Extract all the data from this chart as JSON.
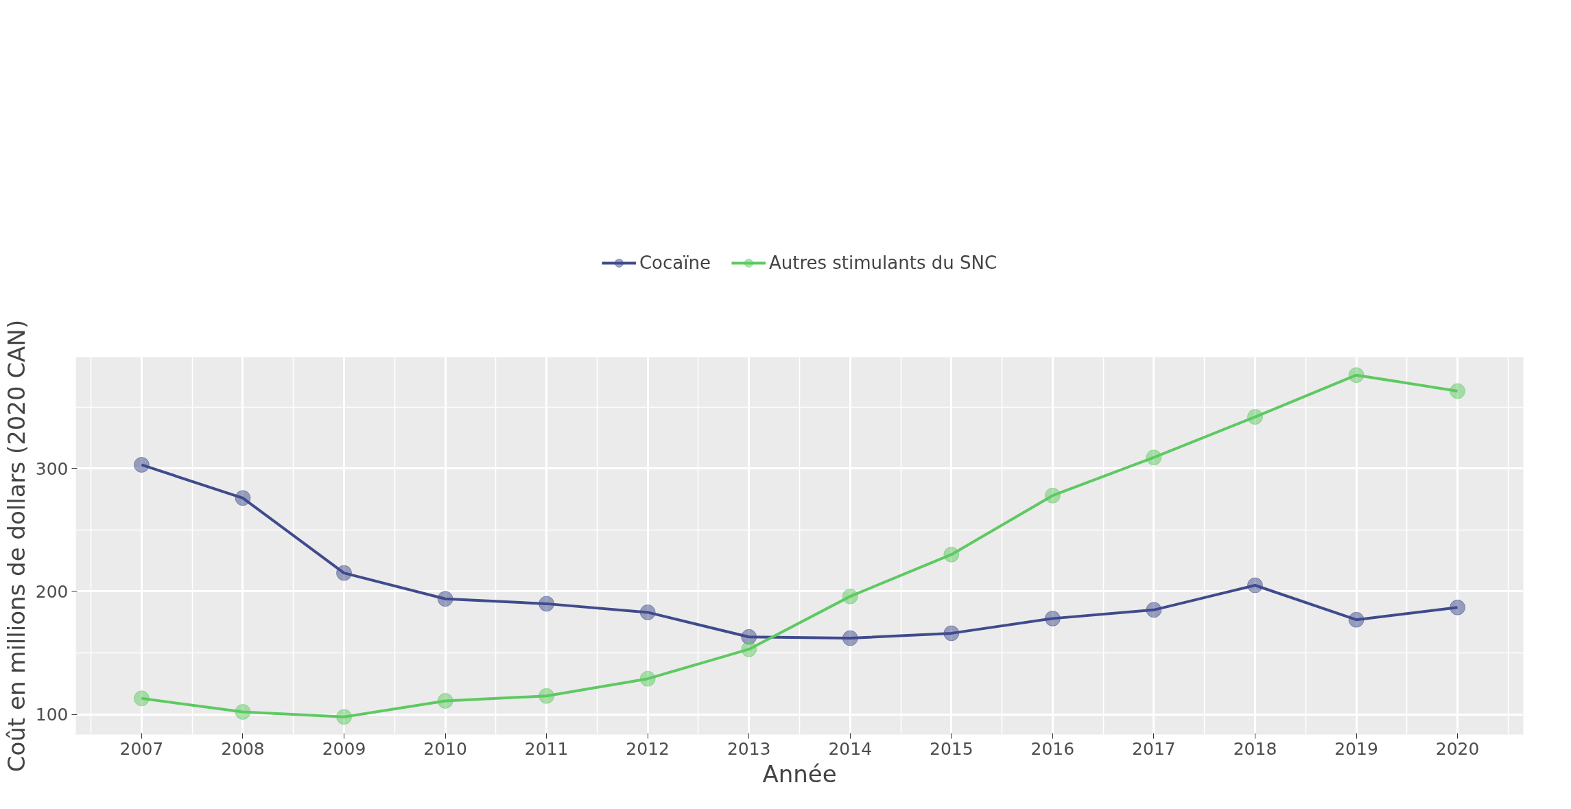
{
  "chart_data": {
    "type": "line",
    "xlabel": "Année",
    "ylabel": "Coût en millions de dollars (2020 CAN)",
    "x": [
      2007,
      2008,
      2009,
      2010,
      2011,
      2012,
      2013,
      2014,
      2015,
      2016,
      2017,
      2018,
      2019,
      2020
    ],
    "series": [
      {
        "name": "Cocaïne",
        "color": "#3f4b8c",
        "values": [
          303,
          276,
          215,
          194,
          190,
          183,
          163,
          162,
          166,
          178,
          185,
          205,
          177,
          187
        ]
      },
      {
        "name": "Autres stimulants du SNC",
        "color": "#5ec962",
        "values": [
          113,
          102,
          98,
          111,
          115,
          129,
          153,
          196,
          230,
          278,
          309,
          342,
          376,
          363
        ]
      }
    ],
    "xlim": [
      2006.35,
      2020.65
    ],
    "xticks": [
      2007,
      2008,
      2009,
      2010,
      2011,
      2012,
      2013,
      2014,
      2015,
      2016,
      2017,
      2018,
      2019,
      2020
    ],
    "ylim": [
      83.6,
      390.6
    ],
    "yticks": [
      100,
      200,
      300
    ],
    "grid": true,
    "legend": "top",
    "marker": "circle",
    "line_style": "solid"
  }
}
